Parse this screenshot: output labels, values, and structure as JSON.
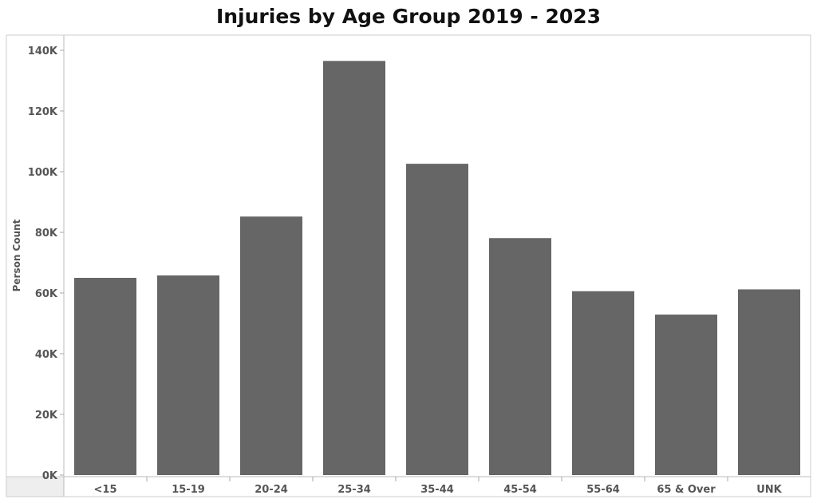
{
  "chart_data": {
    "type": "bar",
    "title": "Injuries by Age Group 2019 - 2023",
    "xlabel": "",
    "ylabel": "Person Count",
    "categories": [
      "<15",
      "15-19",
      "20-24",
      "25-34",
      "35-44",
      "45-54",
      "55-64",
      "65 & Over",
      "UNK"
    ],
    "values": [
      65000,
      65800,
      85200,
      136500,
      102600,
      78100,
      60600,
      52900,
      61200
    ],
    "ylim": [
      0,
      145000
    ],
    "yticks": [
      0,
      20000,
      40000,
      60000,
      80000,
      100000,
      120000,
      140000
    ],
    "ytick_labels": [
      "0K",
      "20K",
      "40K",
      "60K",
      "80K",
      "100K",
      "120K",
      "140K"
    ],
    "bar_color": "#666666",
    "grid": false,
    "legend": "none"
  }
}
